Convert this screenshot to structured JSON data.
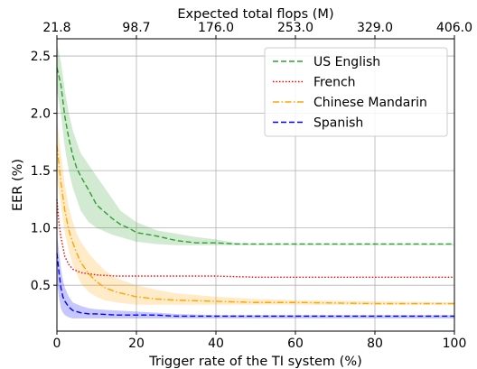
{
  "chart_data": {
    "type": "line",
    "xlabel": "Trigger rate of the TI system (%)",
    "ylabel": "EER (%)",
    "top_xlabel": "Expected total flops (M)",
    "xlim": [
      0,
      100
    ],
    "ylim": [
      0.1,
      2.65
    ],
    "x_ticks": [
      0,
      20,
      40,
      60,
      80,
      100
    ],
    "y_ticks": [
      0.5,
      1.0,
      1.5,
      2.0,
      2.5
    ],
    "top_ticks": [
      {
        "x": 0,
        "label": "21.8"
      },
      {
        "x": 20,
        "label": "98.7"
      },
      {
        "x": 40,
        "label": "176.0"
      },
      {
        "x": 60,
        "label": "253.0"
      },
      {
        "x": 80,
        "label": "329.0"
      },
      {
        "x": 100,
        "label": "406.0"
      }
    ],
    "grid": true,
    "legend_position": "top-right",
    "series": [
      {
        "name": "US English",
        "color": "#2ca02c",
        "line_style": "dashed",
        "x": [
          0,
          1,
          2,
          3,
          4,
          5,
          6,
          8,
          10,
          12,
          14,
          16,
          18,
          20,
          25,
          30,
          35,
          40,
          45,
          50,
          60,
          70,
          80,
          90,
          100
        ],
        "y": [
          2.4,
          2.25,
          1.97,
          1.78,
          1.63,
          1.52,
          1.45,
          1.33,
          1.2,
          1.14,
          1.08,
          1.03,
          1.0,
          0.96,
          0.93,
          0.89,
          0.87,
          0.87,
          0.86,
          0.86,
          0.86,
          0.86,
          0.86,
          0.86,
          0.86
        ],
        "band_low": [
          2.2,
          2.0,
          1.7,
          1.5,
          1.35,
          1.25,
          1.15,
          1.05,
          1.0,
          0.97,
          0.94,
          0.92,
          0.9,
          0.88,
          0.86,
          0.85,
          0.85,
          0.85,
          0.85,
          0.85,
          0.85,
          0.85,
          0.85,
          0.85,
          0.85
        ],
        "band_high": [
          2.6,
          2.45,
          2.2,
          2.0,
          1.85,
          1.75,
          1.65,
          1.55,
          1.45,
          1.35,
          1.25,
          1.15,
          1.1,
          1.05,
          0.98,
          0.95,
          0.92,
          0.9,
          0.87,
          0.86,
          0.86,
          0.86,
          0.86,
          0.86,
          0.86
        ]
      },
      {
        "name": "French",
        "color": "#ff0000",
        "line_style": "dotted",
        "x": [
          0,
          0.5,
          1,
          2,
          3,
          4,
          6,
          8,
          10,
          15,
          20,
          30,
          40,
          50,
          60,
          80,
          100
        ],
        "y": [
          1.25,
          1.05,
          0.92,
          0.75,
          0.68,
          0.64,
          0.61,
          0.6,
          0.59,
          0.58,
          0.58,
          0.58,
          0.58,
          0.57,
          0.57,
          0.57,
          0.57
        ]
      },
      {
        "name": "Chinese Mandarin",
        "color": "#ffa500",
        "line_style": "dashdot",
        "x": [
          0,
          1,
          2,
          3,
          4,
          5,
          6,
          8,
          10,
          12,
          15,
          20,
          25,
          30,
          40,
          50,
          60,
          80,
          100
        ],
        "y": [
          1.72,
          1.4,
          1.15,
          0.98,
          0.87,
          0.78,
          0.7,
          0.6,
          0.53,
          0.48,
          0.44,
          0.4,
          0.38,
          0.37,
          0.36,
          0.35,
          0.35,
          0.34,
          0.34
        ],
        "band_low": [
          1.45,
          1.2,
          0.95,
          0.8,
          0.68,
          0.6,
          0.52,
          0.44,
          0.4,
          0.37,
          0.35,
          0.33,
          0.33,
          0.33,
          0.33,
          0.33,
          0.33,
          0.33,
          0.33
        ],
        "band_high": [
          1.95,
          1.65,
          1.38,
          1.18,
          1.05,
          0.95,
          0.88,
          0.78,
          0.7,
          0.63,
          0.56,
          0.5,
          0.46,
          0.43,
          0.4,
          0.38,
          0.37,
          0.36,
          0.35
        ]
      },
      {
        "name": "Spanish",
        "color": "#0000ff",
        "line_style": "dashed",
        "x": [
          0,
          0.5,
          1,
          1.5,
          2,
          3,
          4,
          6,
          8,
          10,
          15,
          20,
          25,
          30,
          40,
          50,
          60,
          80,
          100
        ],
        "y": [
          0.78,
          0.62,
          0.48,
          0.4,
          0.36,
          0.31,
          0.28,
          0.26,
          0.25,
          0.25,
          0.24,
          0.24,
          0.24,
          0.23,
          0.23,
          0.23,
          0.23,
          0.23,
          0.23
        ],
        "band_low": [
          0.55,
          0.4,
          0.3,
          0.26,
          0.24,
          0.22,
          0.21,
          0.21,
          0.21,
          0.21,
          0.21,
          0.21,
          0.21,
          0.21,
          0.21,
          0.21,
          0.21,
          0.21,
          0.21
        ],
        "band_high": [
          0.95,
          0.8,
          0.65,
          0.55,
          0.48,
          0.4,
          0.35,
          0.32,
          0.3,
          0.29,
          0.28,
          0.27,
          0.26,
          0.25,
          0.24,
          0.24,
          0.24,
          0.24,
          0.24
        ]
      }
    ]
  }
}
